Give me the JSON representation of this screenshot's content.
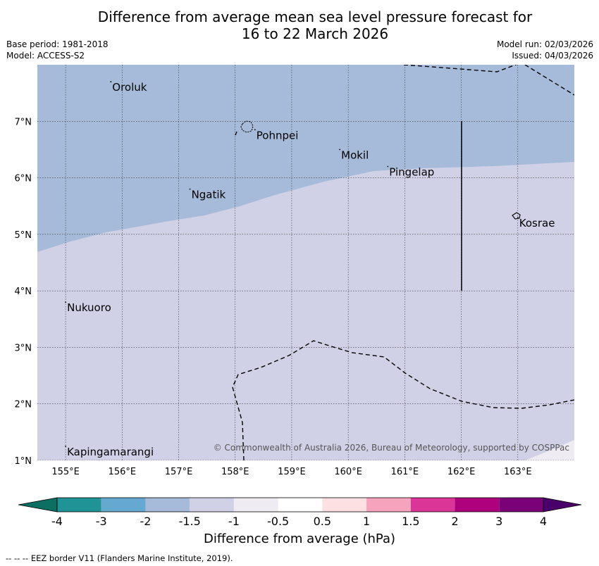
{
  "title": {
    "line1": "Difference from average mean sea level pressure forecast for",
    "line2": "16 to 22 March 2026"
  },
  "meta": {
    "base_period": "Base period: 1981-2018",
    "model": "Model: ACCESS-S2",
    "model_run": "Model run: 02/03/2026",
    "issued": "Issued: 04/03/2026"
  },
  "map": {
    "lon_range": [
      154.5,
      164.0
    ],
    "lat_range": [
      1.0,
      8.0
    ],
    "lon_ticks": [
      "155°E",
      "156°E",
      "157°E",
      "158°E",
      "159°E",
      "160°E",
      "161°E",
      "162°E",
      "163°E"
    ],
    "lat_ticks": [
      "7°N",
      "6°N",
      "5°N",
      "4°N",
      "3°N",
      "2°N",
      "1°N"
    ],
    "places": [
      {
        "name": "Oroluk",
        "lon": 155.8,
        "lat": 7.7
      },
      {
        "name": "Pohnpei",
        "lon": 158.35,
        "lat": 6.85
      },
      {
        "name": "Mokil",
        "lon": 159.85,
        "lat": 6.5
      },
      {
        "name": "Pingelap",
        "lon": 160.7,
        "lat": 6.2
      },
      {
        "name": "Ngatik",
        "lon": 157.2,
        "lat": 5.8
      },
      {
        "name": "Kosrae",
        "lon": 163.0,
        "lat": 5.3
      },
      {
        "name": "Nukuoro",
        "lon": 155.0,
        "lat": 3.8
      },
      {
        "name": "Kapingamarangi",
        "lon": 155.0,
        "lat": 1.25
      }
    ],
    "credit": "© Commonwealth of Australia 2026, Bureau of Meteorology, supported by COSPPac"
  },
  "colorbar": {
    "title": "Difference from average (hPa)",
    "labels": [
      "-4",
      "-3",
      "-2",
      "-1.5",
      "-1",
      "-0.5",
      "0.5",
      "1",
      "1.5",
      "2",
      "3",
      "4"
    ],
    "colors": [
      "#1f9396",
      "#65a8d0",
      "#a6bbda",
      "#d0d1e6",
      "#efebf3",
      "#ffffff",
      "#fde0e1",
      "#f6a3bd",
      "#dc3598",
      "#ad017e",
      "#7a0177"
    ],
    "under_color": "#0d6e62",
    "over_color": "#4a006a"
  },
  "footnote": "--  --  -- EEZ border V11 (Flanders Marine Institute, 2019)."
}
